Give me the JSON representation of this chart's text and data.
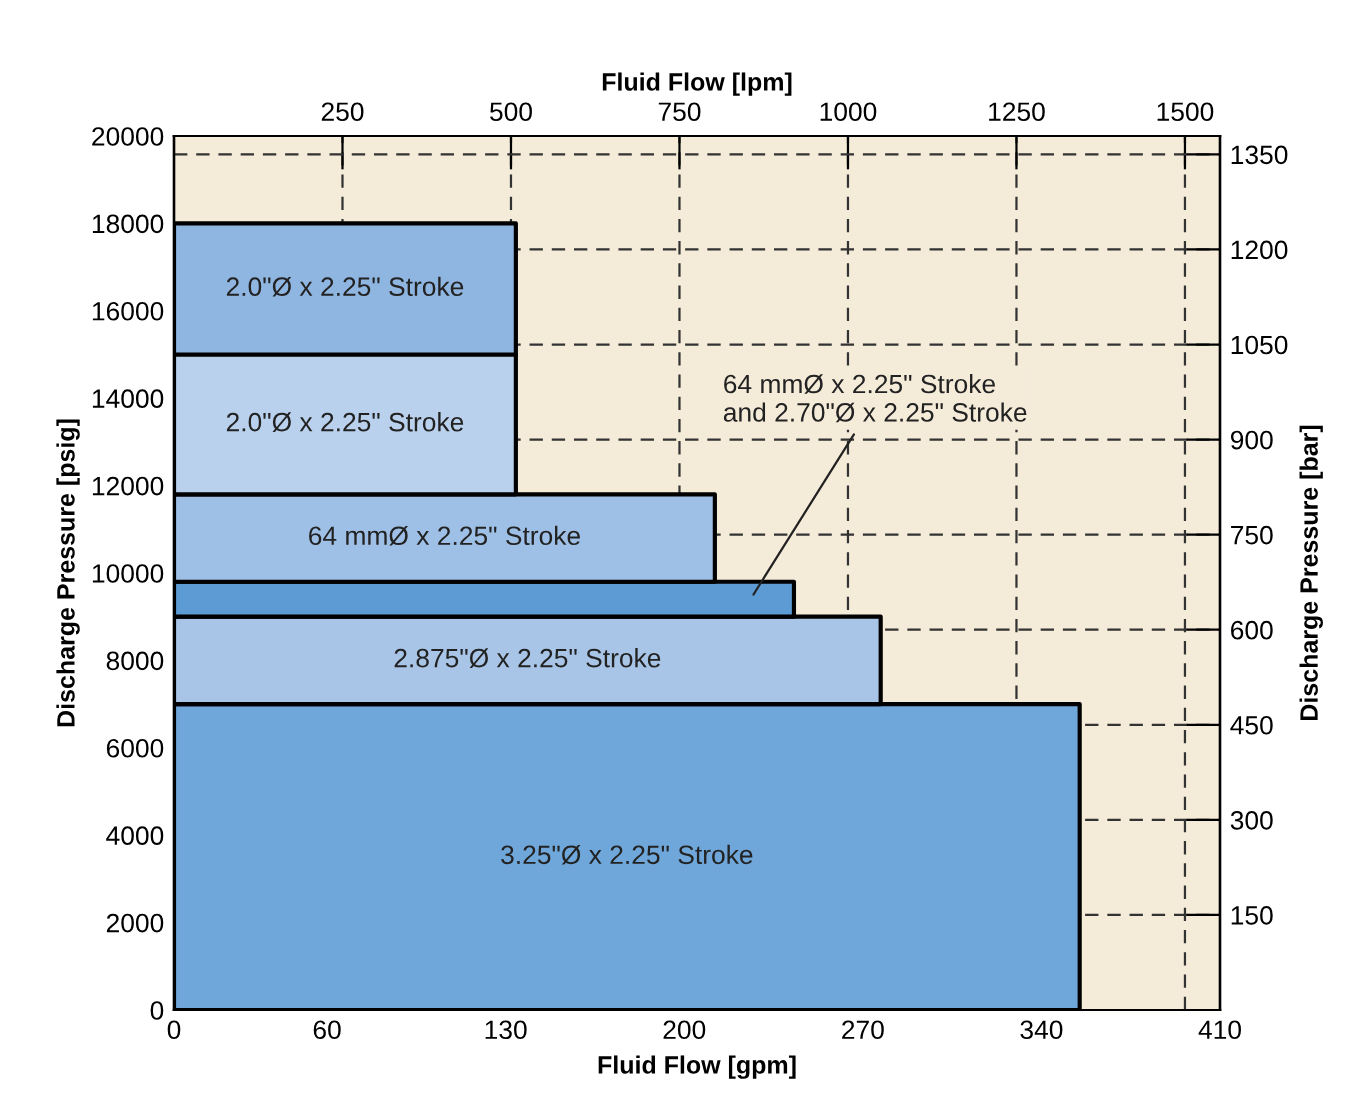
{
  "chart_data": {
    "type": "area",
    "stacked": true,
    "xlabel": "Fluid Flow [gpm]",
    "ylabel": "Discharge Pressure [psig]",
    "x2label": "Fluid Flow [lpm]",
    "y2label": "Discharge Pressure [bar]",
    "xlim": [
      0,
      410
    ],
    "xticks": [
      0,
      60,
      130,
      200,
      270,
      340,
      410
    ],
    "ylim": [
      0,
      20000
    ],
    "yticks": [
      0,
      2000,
      4000,
      6000,
      8000,
      10000,
      12000,
      14000,
      16000,
      18000,
      20000
    ],
    "x2lim": [
      0,
      1552
    ],
    "x2ticks": [
      250,
      500,
      750,
      1000,
      1250,
      1500
    ],
    "y2lim": [
      0,
      1379
    ],
    "y2ticks": [
      150,
      300,
      450,
      600,
      750,
      900,
      1050,
      1200,
      1350
    ],
    "grid": true,
    "series": [
      {
        "name": "3.25\"Ø x 2.25\" Stroke",
        "color": "#6fa7da",
        "x": [
          0,
          355
        ],
        "values": [
          7000,
          7000
        ]
      },
      {
        "name": "2.875\"Ø x 2.25\" Stroke",
        "color": "#a8c5e7",
        "x": [
          0,
          277
        ],
        "values": [
          2000,
          2000
        ]
      },
      {
        "color": "#5d9bd5",
        "x": [
          0,
          243
        ],
        "values": [
          800,
          800
        ]
      },
      {
        "name": "64 mmØ x 2.25\" Stroke",
        "color": "#9ec0e6",
        "x": [
          0,
          212
        ],
        "values": [
          2000,
          2000
        ]
      },
      {
        "name": "2.0\"Ø x 2.25\" Stroke",
        "color": "#b9d1ed",
        "x": [
          0,
          134
        ],
        "values": [
          3200,
          3200
        ]
      },
      {
        "name": "2.0\"Ø x 2.25\" Stroke",
        "color": "#8fb5e1",
        "x": [
          0,
          134
        ],
        "values": [
          3000,
          3000
        ]
      }
    ],
    "annotations": [
      "64 mmØ x 2.25\" Stroke\nand 2.70\"Ø x 2.25\" Stroke"
    ]
  }
}
